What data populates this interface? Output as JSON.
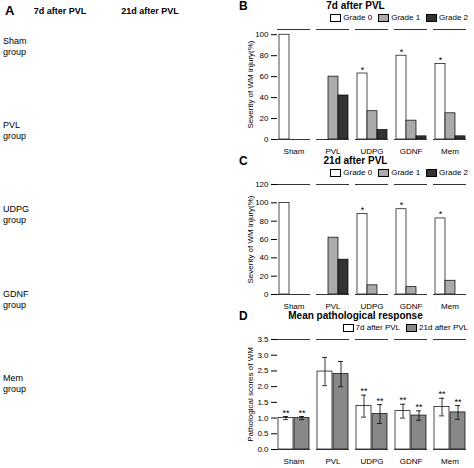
{
  "annotations": [
    "A",
    "7d after PVL",
    "21d after PVL",
    "Sham\ngroup",
    "PVL\ngroup",
    "UDPG\ngroup",
    "GDNF\ngroup",
    "Mem\ngroup"
  ],
  "chart_data": [
    {
      "type": "bar",
      "title": "7d after PVL",
      "categories": [
        "Sham",
        "PVL",
        "UDPG",
        "GDNF",
        "Mem"
      ],
      "series": [
        {
          "name": "Grade 0",
          "color": "#ffffff",
          "values": [
            100,
            0,
            63,
            80,
            72
          ]
        },
        {
          "name": "Grade 1",
          "color": "#aaaaaa",
          "values": [
            0,
            60,
            27,
            18,
            25
          ]
        },
        {
          "name": "Grade 2",
          "color": "#333333",
          "values": [
            0,
            42,
            9,
            3,
            3
          ]
        }
      ],
      "ylabel": "Severity of WM injury(%)",
      "ylim": [
        0,
        105
      ],
      "yticks": [
        0,
        20,
        40,
        60,
        80,
        100
      ],
      "legend": "upper right",
      "annotations": [
        {
          "text": "B"
        },
        {
          "category": "UDPG",
          "series": "Grade 0",
          "text": "*"
        },
        {
          "category": "GDNF",
          "series": "Grade 0",
          "text": "*"
        },
        {
          "category": "Mem",
          "series": "Grade 0",
          "text": "*"
        }
      ]
    },
    {
      "type": "bar",
      "title": "21d after PVL",
      "categories": [
        "Sham",
        "PVL",
        "UDPG",
        "GDNF",
        "Mem"
      ],
      "series": [
        {
          "name": "Grade 0",
          "color": "#ffffff",
          "values": [
            100,
            0,
            88,
            93,
            83
          ]
        },
        {
          "name": "Grade 1",
          "color": "#aaaaaa",
          "values": [
            0,
            62,
            10,
            8,
            15
          ]
        },
        {
          "name": "Grade 2",
          "color": "#333333",
          "values": [
            0,
            38,
            0,
            0,
            0
          ]
        }
      ],
      "ylabel": "Severity of WM injury(%)",
      "ylim": [
        0,
        120
      ],
      "yticks": [
        0,
        20,
        40,
        60,
        80,
        100,
        120
      ],
      "legend": "upper right",
      "annotations": [
        {
          "text": "C"
        },
        {
          "category": "UDPG",
          "series": "Grade 0",
          "text": "*"
        },
        {
          "category": "GDNF",
          "series": "Grade 0",
          "text": "*"
        },
        {
          "category": "Mem",
          "series": "Grade 0",
          "text": "*"
        }
      ]
    },
    {
      "type": "bar",
      "title": "Mean pathological response",
      "categories": [
        "Sham",
        "PVL",
        "UDPG",
        "GDNF",
        "Mem"
      ],
      "series": [
        {
          "name": "7d after PVL",
          "color": "#ffffff",
          "values": [
            1.0,
            2.48,
            1.38,
            1.22,
            1.35
          ],
          "errors": [
            0.05,
            0.45,
            0.35,
            0.22,
            0.28
          ]
        },
        {
          "name": "21d after PVL",
          "color": "#888888",
          "values": [
            1.0,
            2.4,
            1.13,
            1.08,
            1.18
          ],
          "errors": [
            0.05,
            0.4,
            0.3,
            0.15,
            0.22
          ]
        }
      ],
      "ylabel": "Pathological scores of WM",
      "ylim": [
        0,
        3.5
      ],
      "yticks": [
        {
          "value": 0,
          "label": "0.0"
        },
        {
          "value": 0.5,
          "label": "0.5"
        },
        {
          "value": 1,
          "label": "1.0"
        },
        {
          "value": 1.5,
          "label": "1.5"
        },
        {
          "value": 2,
          "label": "2.0"
        },
        {
          "value": 2.5,
          "label": "2.5"
        },
        {
          "value": 3,
          "label": "3.0"
        },
        {
          "value": 3.5,
          "label": "3.5"
        }
      ],
      "legend": "upper right",
      "annotations": [
        {
          "text": "D"
        },
        {
          "category": "Sham",
          "series": "7d after PVL",
          "text": "**"
        },
        {
          "category": "Sham",
          "series": "21d after PVL",
          "text": "**"
        },
        {
          "category": "UDPG",
          "series": "7d after PVL",
          "text": "**"
        },
        {
          "category": "UDPG",
          "series": "21d after PVL",
          "text": "**"
        },
        {
          "category": "GDNF",
          "series": "7d after PVL",
          "text": "**"
        },
        {
          "category": "GDNF",
          "series": "21d after PVL",
          "text": "**"
        },
        {
          "category": "Mem",
          "series": "7d after PVL",
          "text": "**"
        },
        {
          "category": "Mem",
          "series": "21d after PVL",
          "text": "**"
        }
      ]
    }
  ]
}
